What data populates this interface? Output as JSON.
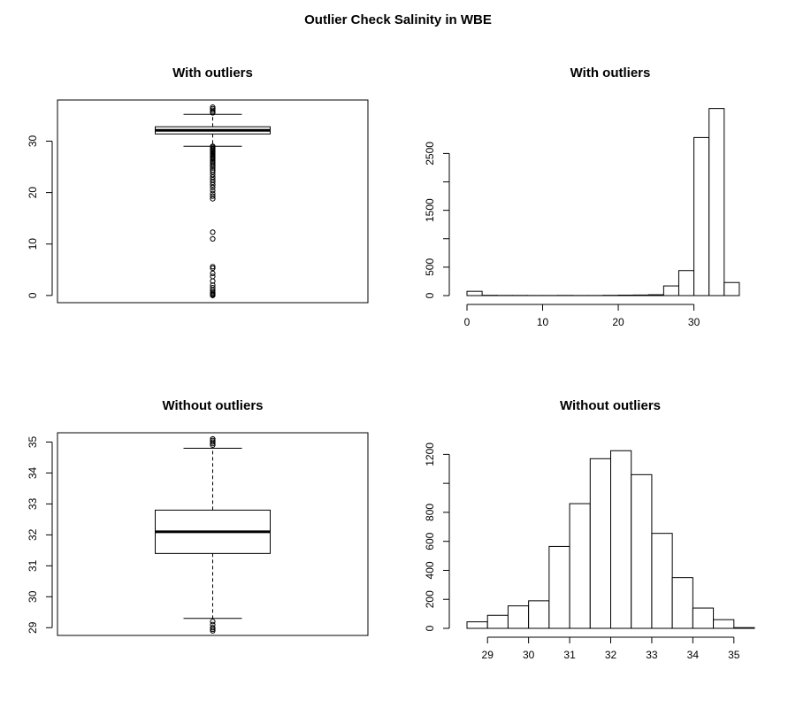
{
  "title": "Outlier Check Salinity in WBE",
  "chart_data": [
    {
      "type": "boxplot",
      "title": "With outliers",
      "ylim": [
        -1.4,
        38
      ],
      "yticks": [
        0,
        10,
        20,
        30
      ],
      "box": {
        "q1": 31.4,
        "median": 32.1,
        "q3": 32.8,
        "whisker_low": 29.0,
        "whisker_high": 35.2
      },
      "outliers": [
        36.6,
        36.3,
        36.0,
        35.7,
        35.5,
        29.0,
        28.8,
        28.5,
        28.3,
        28.1,
        27.9,
        27.7,
        27.5,
        27.3,
        27.1,
        26.9,
        26.7,
        26.5,
        26.2,
        26.0,
        25.7,
        25.4,
        25.1,
        24.8,
        24.4,
        24.0,
        23.5,
        23.0,
        22.5,
        22.0,
        21.5,
        21.0,
        20.4,
        19.8,
        19.3,
        18.8,
        12.3,
        11.0,
        5.6,
        5.3,
        4.3,
        3.7,
        2.8,
        2.0,
        1.5,
        1.0,
        0.6,
        0.4,
        0.2,
        0.1,
        0.0
      ]
    },
    {
      "type": "histogram",
      "title": "With outliers",
      "xlim": [
        0,
        38
      ],
      "ylim": [
        0,
        3300
      ],
      "xticks": [
        0,
        10,
        20,
        30
      ],
      "yticks": [
        0,
        500,
        1500,
        2500
      ],
      "bin_edges": [
        0,
        2,
        4,
        6,
        8,
        10,
        12,
        14,
        16,
        18,
        20,
        22,
        24,
        26,
        28,
        30,
        32,
        34,
        36
      ],
      "counts": [
        75,
        5,
        3,
        3,
        2,
        2,
        3,
        2,
        2,
        5,
        8,
        10,
        15,
        170,
        440,
        2780,
        3290,
        230
      ]
    },
    {
      "type": "boxplot",
      "title": "Without outliers",
      "ylim": [
        28.75,
        35.3
      ],
      "yticks": [
        29,
        30,
        31,
        32,
        33,
        34,
        35
      ],
      "box": {
        "q1": 31.4,
        "median": 32.1,
        "q3": 32.8,
        "whisker_low": 29.3,
        "whisker_high": 34.8
      },
      "outliers": [
        35.1,
        35.05,
        35.0,
        34.95,
        34.9,
        29.2,
        29.1,
        29.0,
        28.95,
        28.9
      ]
    },
    {
      "type": "histogram",
      "title": "Without outliers",
      "xlim": [
        28.5,
        35.5
      ],
      "ylim": [
        0,
        1300
      ],
      "xticks": [
        29,
        30,
        31,
        32,
        33,
        34,
        35
      ],
      "yticks": [
        0,
        200,
        400,
        600,
        800,
        1200
      ],
      "bin_edges": [
        28.5,
        29,
        29.5,
        30,
        30.5,
        31,
        31.5,
        32,
        32.5,
        33,
        33.5,
        34,
        34.5,
        35,
        35.5
      ],
      "counts": [
        45,
        90,
        155,
        190,
        565,
        860,
        1170,
        1225,
        1060,
        655,
        350,
        140,
        60,
        5
      ]
    }
  ]
}
